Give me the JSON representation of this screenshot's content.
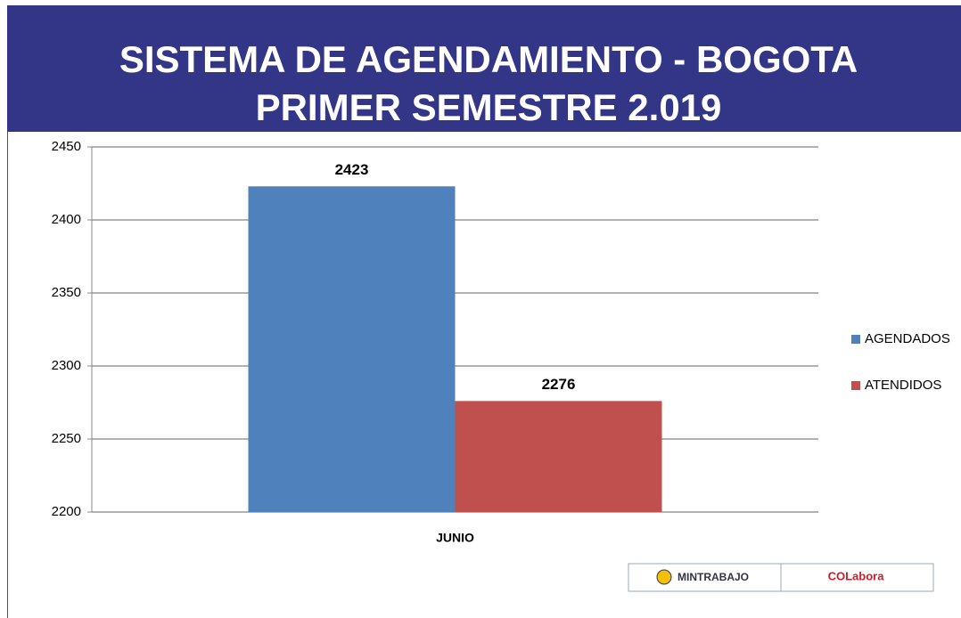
{
  "chart_data": {
    "type": "bar",
    "title": "SISTEMA DE AGENDAMIENTO - BOGOTA",
    "subtitle": "PRIMER SEMESTRE 2.019",
    "categories": [
      "JUNIO"
    ],
    "series": [
      {
        "name": "AGENDADOS",
        "color": "#4f81bd",
        "values": [
          2423
        ]
      },
      {
        "name": "ATENDIDOS",
        "color": "#c0504d",
        "values": [
          2276
        ]
      }
    ],
    "ylim": [
      2200,
      2450
    ],
    "yticks": [
      2200,
      2250,
      2300,
      2350,
      2400,
      2450
    ],
    "grid": true,
    "legend": "right"
  },
  "footer": {
    "logos": [
      "MINTRABAJO",
      "COLabora"
    ]
  }
}
